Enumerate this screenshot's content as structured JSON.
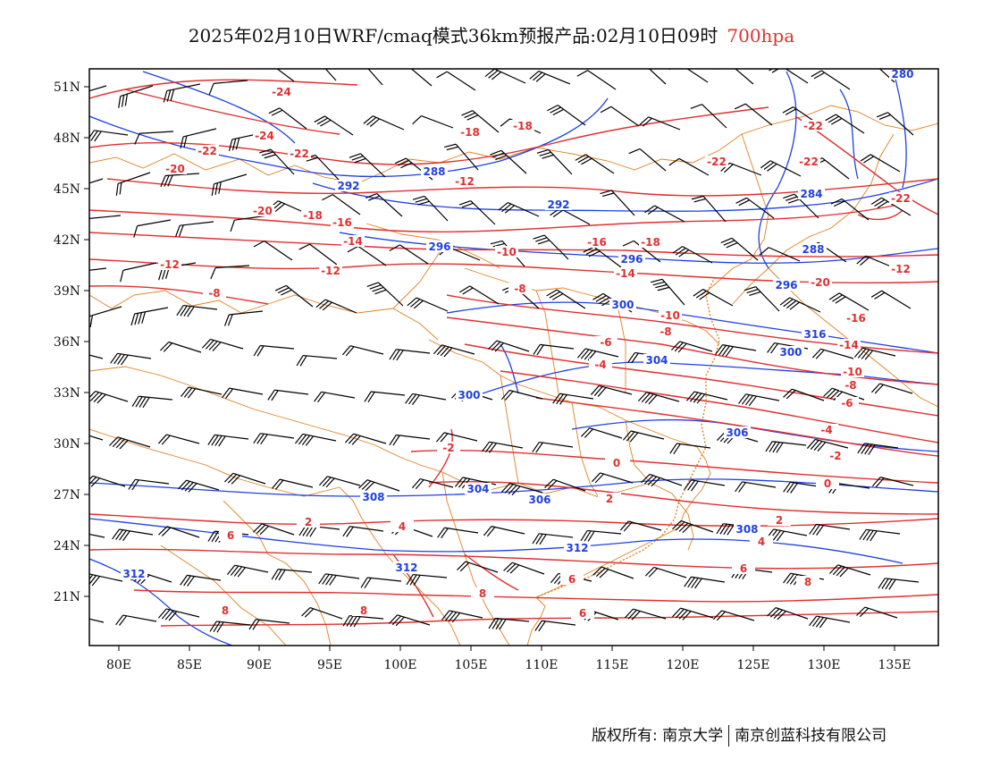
{
  "header": {
    "title": "2025年02月10日WRF/cmaq模式36km预报产品:02月10日09时",
    "level": "700hpa"
  },
  "axes": {
    "x_ticks": [
      "80E",
      "85E",
      "90E",
      "95E",
      "100E",
      "105E",
      "110E",
      "115E",
      "120E",
      "125E",
      "130E",
      "135E"
    ],
    "y_ticks": [
      "51N",
      "48N",
      "45N",
      "42N",
      "39N",
      "36N",
      "33N",
      "30N",
      "27N",
      "24N",
      "21N"
    ]
  },
  "colors": {
    "temperature": "#e03030",
    "height": "#2040e0",
    "border": "#e08020",
    "barb": "#000000",
    "frame": "#000000"
  },
  "contour_labels": {
    "temperature": [
      "-24",
      "-24",
      "-22",
      "-22",
      "-22",
      "-22",
      "-22",
      "-22",
      "-20",
      "-20",
      "-20",
      "-18",
      "-18",
      "-18",
      "-18",
      "-16",
      "-16",
      "-16",
      "-14",
      "-14",
      "-14",
      "-12",
      "-12",
      "-12",
      "-12",
      "-10",
      "-10",
      "-10",
      "-8",
      "-8",
      "-8",
      "-8",
      "-6",
      "-6",
      "-4",
      "-4",
      "-2",
      "-2",
      "-2",
      "0",
      "0",
      "2",
      "2",
      "2",
      "4",
      "4",
      "6",
      "6",
      "6",
      "6",
      "8",
      "8",
      "8",
      "8"
    ],
    "height": [
      "280",
      "284",
      "288",
      "288",
      "292",
      "292",
      "296",
      "296",
      "296",
      "300",
      "300",
      "300",
      "304",
      "304",
      "306",
      "306",
      "308",
      "308",
      "312",
      "312",
      "312",
      "316"
    ]
  },
  "footer": {
    "left": "版权所有: 南京大学",
    "right": "南京创蓝科技有限公司"
  }
}
